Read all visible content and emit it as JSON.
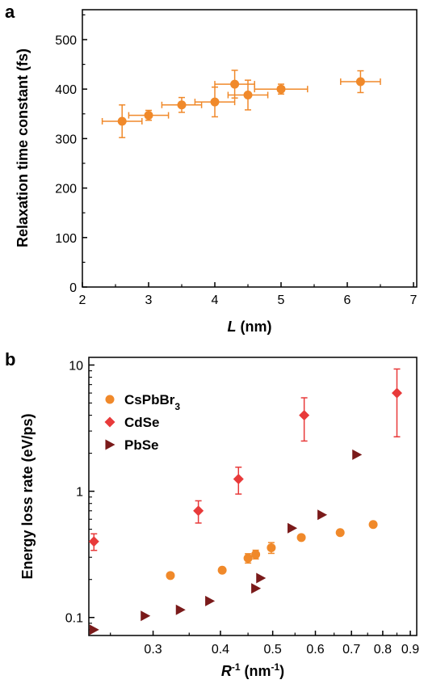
{
  "colors": {
    "cspbbr3": "#f0892a",
    "cdse": "#e83a3a",
    "pbse": "#7a1a1a",
    "axis": "#000000"
  },
  "chart_data": [
    {
      "panel": "a",
      "type": "scatter",
      "xlabel": {
        "var": "L",
        "unit": " (nm)"
      },
      "ylabel": "Relaxation time constant (fs)",
      "xlim": [
        2,
        7
      ],
      "ylim": [
        0,
        550
      ],
      "xticks": [
        2,
        3,
        4,
        5,
        6,
        7
      ],
      "yticks": [
        0,
        100,
        200,
        300,
        400,
        500
      ],
      "grid": false,
      "series": [
        {
          "marker": "circle",
          "color": "#f0892a",
          "points": [
            {
              "x": 2.6,
              "y": 335,
              "xerr": 0.3,
              "yerr": 33
            },
            {
              "x": 3.0,
              "y": 347,
              "xerr": 0.3,
              "yerr": 10
            },
            {
              "x": 3.5,
              "y": 368,
              "xerr": 0.3,
              "yerr": 15
            },
            {
              "x": 4.0,
              "y": 374,
              "xerr": 0.3,
              "yerr": 30
            },
            {
              "x": 4.3,
              "y": 410,
              "xerr": 0.3,
              "yerr": 28
            },
            {
              "x": 4.5,
              "y": 388,
              "xerr": 0.3,
              "yerr": 30
            },
            {
              "x": 5.0,
              "y": 400,
              "xerr": 0.4,
              "yerr": 10
            },
            {
              "x": 6.2,
              "y": 415,
              "xerr": 0.3,
              "yerr": 22
            }
          ]
        }
      ]
    },
    {
      "panel": "b",
      "type": "scatter",
      "xlabel": {
        "var": "R",
        "sup": "-1",
        "unit": " (nm",
        "unitSup": "-1",
        "close": ")"
      },
      "ylabel": "Energy loss rate (eV/ps)",
      "xscale": "log",
      "yscale": "log",
      "xlim": [
        0.228,
        0.925
      ],
      "ylim": [
        0.072,
        11.5
      ],
      "xticks": [
        0.3,
        0.4,
        0.5,
        0.6,
        0.7,
        0.8,
        0.9
      ],
      "yticks": [
        0.1,
        1,
        10
      ],
      "grid": false,
      "legend_position": "top-left",
      "series": [
        {
          "name": "CsPbBr",
          "nameSub": "3",
          "marker": "circle",
          "color": "#f0892a",
          "points": [
            {
              "x": 0.323,
              "y": 0.215
            },
            {
              "x": 0.403,
              "y": 0.237
            },
            {
              "x": 0.45,
              "y": 0.295,
              "yerr": 0.025
            },
            {
              "x": 0.465,
              "y": 0.316,
              "yerr": 0.025
            },
            {
              "x": 0.497,
              "y": 0.357,
              "yerr": 0.035
            },
            {
              "x": 0.565,
              "y": 0.43
            },
            {
              "x": 0.667,
              "y": 0.47
            },
            {
              "x": 0.768,
              "y": 0.545
            }
          ]
        },
        {
          "name": "CdSe",
          "marker": "diamond",
          "color": "#e83a3a",
          "points": [
            {
              "x": 0.233,
              "y": 0.4,
              "yerr_low": 0.06,
              "yerr_high": 0.06
            },
            {
              "x": 0.364,
              "y": 0.7,
              "yerr_low": 0.14,
              "yerr_high": 0.14
            },
            {
              "x": 0.432,
              "y": 1.25,
              "yerr_low": 0.3,
              "yerr_high": 0.3
            },
            {
              "x": 0.572,
              "y": 4.0,
              "yerr_low": 1.5,
              "yerr_high": 1.5
            },
            {
              "x": 0.85,
              "y": 6.0,
              "yerr_low": 3.3,
              "yerr_high": 3.3
            }
          ]
        },
        {
          "name": "PbSe",
          "marker": "triangle-right",
          "color": "#7a1a1a",
          "points": [
            {
              "x": 0.233,
              "y": 0.08
            },
            {
              "x": 0.29,
              "y": 0.103
            },
            {
              "x": 0.337,
              "y": 0.115
            },
            {
              "x": 0.382,
              "y": 0.135
            },
            {
              "x": 0.465,
              "y": 0.17
            },
            {
              "x": 0.475,
              "y": 0.205
            },
            {
              "x": 0.543,
              "y": 0.51
            },
            {
              "x": 0.617,
              "y": 0.65
            },
            {
              "x": 0.716,
              "y": 1.95
            }
          ]
        }
      ]
    }
  ]
}
